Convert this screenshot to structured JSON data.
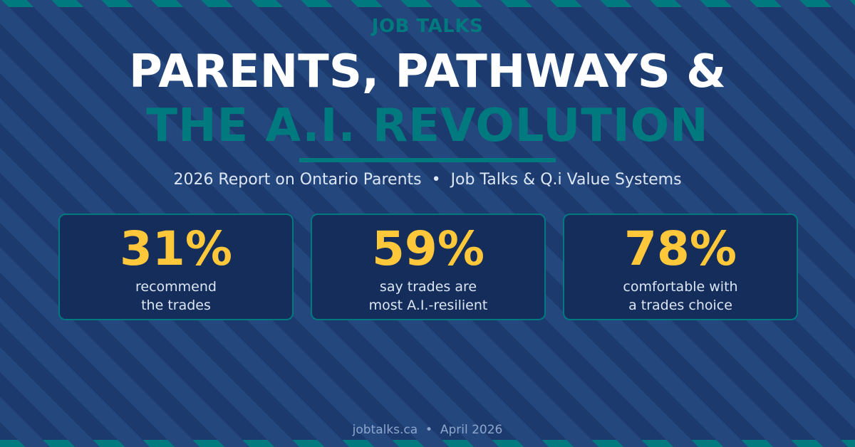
{
  "header": {
    "kicker": "JOB TALKS",
    "title_line1": "PARENTS, PATHWAYS &",
    "title_line2": "THE A.I. REVOLUTION",
    "subtitle": "2026 Report on Ontario Parents  •  Job Talks & Q.i Value Systems"
  },
  "stats": [
    {
      "value": "31%",
      "line1": "recommend",
      "line2": "the trades"
    },
    {
      "value": "59%",
      "line1": "say trades are",
      "line2": "most A.I.-resilient"
    },
    {
      "value": "78%",
      "line1": "comfortable with",
      "line2": "a trades choice"
    }
  ],
  "footer": {
    "text": "jobtalks.ca  •  April 2026"
  },
  "colors": {
    "background": "#1c3a6e",
    "stripe": "#24477e",
    "accent": "#007a7e",
    "stat": "#ffc83a"
  }
}
